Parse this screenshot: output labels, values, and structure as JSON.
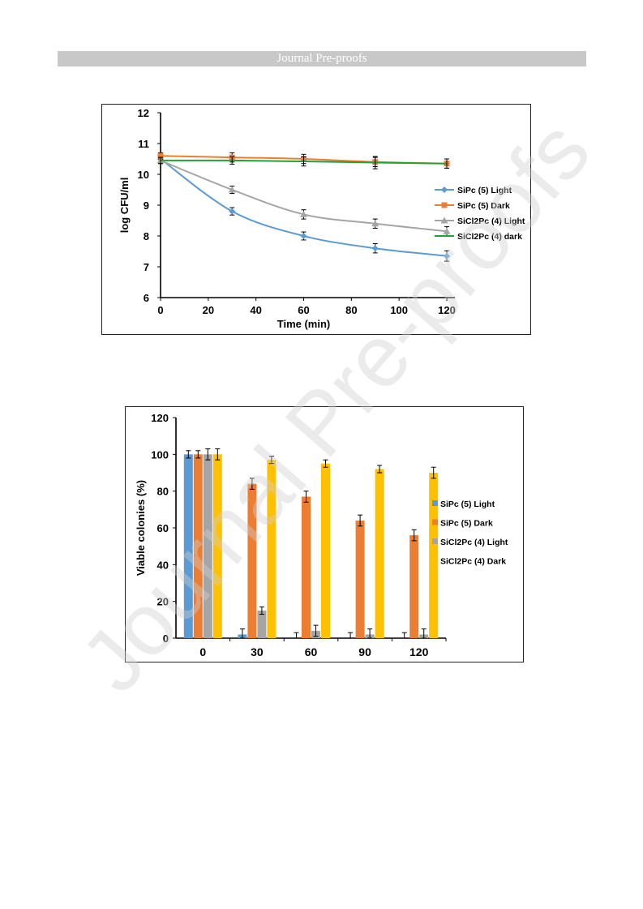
{
  "header": {
    "title": "Journal Pre-proofs"
  },
  "watermark": {
    "text": "Journal Pre-proofs"
  },
  "colors": {
    "blue": "#5b9bd5",
    "orange": "#ed7d31",
    "gray": "#a5a5a5",
    "green": "#21a336",
    "yellow": "#ffc000",
    "axis": "#000000",
    "header_bar": "#c8c8c8"
  },
  "chart_data": [
    {
      "type": "line",
      "xlabel": "Time (min)",
      "ylabel": "log CFU/ml",
      "xlim": [
        0,
        120
      ],
      "ylim": [
        6,
        12
      ],
      "xticks": [
        0,
        20,
        40,
        60,
        80,
        100,
        120
      ],
      "yticks": [
        6,
        7,
        8,
        9,
        10,
        11,
        12
      ],
      "grid": false,
      "legend_position": "right",
      "x": [
        0,
        30,
        60,
        90,
        120
      ],
      "series": [
        {
          "name": "SiPc (5) Light",
          "color": "#5b9bd5",
          "marker": "diamond",
          "values": [
            10.5,
            8.8,
            8.0,
            7.6,
            7.35
          ],
          "errors": [
            0.1,
            0.12,
            0.13,
            0.15,
            0.17
          ]
        },
        {
          "name": "SiPc (5) Dark",
          "color": "#ed7d31",
          "marker": "square",
          "values": [
            10.6,
            10.55,
            10.5,
            10.4,
            10.35
          ],
          "errors": [
            0.1,
            0.15,
            0.15,
            0.15,
            0.15
          ]
        },
        {
          "name": "SiCl2Pc (4) Light",
          "color": "#a5a5a5",
          "marker": "triangle",
          "values": [
            10.45,
            9.5,
            8.7,
            8.4,
            8.15
          ],
          "errors": [
            0.1,
            0.12,
            0.15,
            0.15,
            0.15
          ]
        },
        {
          "name": "SiCl2Pc (4) dark",
          "color": "#21a336",
          "marker": "none",
          "values": [
            10.45,
            10.45,
            10.42,
            10.38,
            10.35
          ],
          "errors": [
            0.1,
            0.12,
            0.15,
            0.2,
            0.15
          ]
        }
      ]
    },
    {
      "type": "bar",
      "ylabel": "Viable colonies (%)",
      "xlabel": "",
      "ylim": [
        0,
        120
      ],
      "yticks": [
        0,
        20,
        40,
        60,
        80,
        100,
        120
      ],
      "grid": false,
      "legend_position": "right",
      "categories": [
        "0",
        "30",
        "60",
        "90",
        "120"
      ],
      "series": [
        {
          "name": "SiPc (5) Light",
          "color": "#5b9bd5",
          "values": [
            100,
            2,
            0,
            0,
            0
          ],
          "errors": [
            2,
            3,
            3,
            3,
            3
          ]
        },
        {
          "name": "SiPc (5) Dark",
          "color": "#ed7d31",
          "values": [
            100,
            84,
            77,
            64,
            56
          ],
          "errors": [
            2,
            3,
            3,
            3,
            3
          ]
        },
        {
          "name": "SiCl2Pc (4) Light",
          "color": "#a5a5a5",
          "values": [
            100,
            15,
            4,
            2,
            2
          ],
          "errors": [
            3,
            2,
            3,
            3,
            3
          ]
        },
        {
          "name": "SiCl2Pc (4) Dark",
          "color": "#ffc000",
          "values": [
            100,
            97,
            95,
            92,
            90
          ],
          "errors": [
            3,
            2,
            2,
            2,
            3
          ]
        }
      ]
    }
  ]
}
